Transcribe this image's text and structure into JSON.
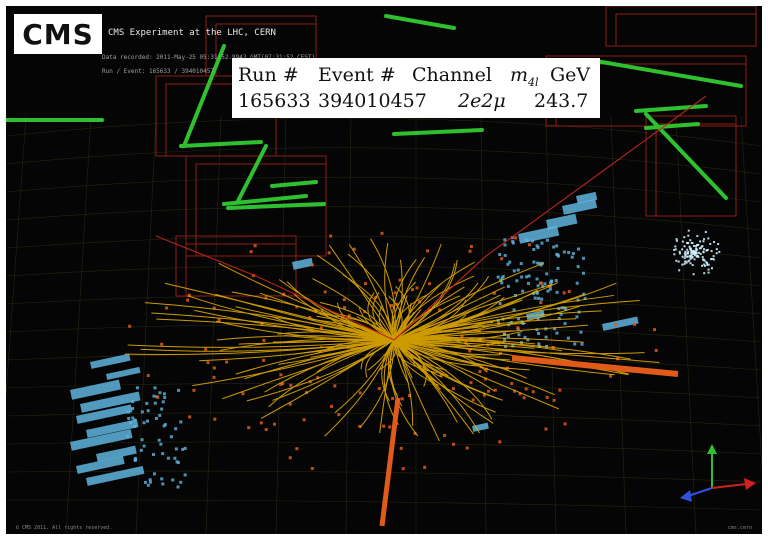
{
  "logo": {
    "text": "CMS"
  },
  "header": {
    "experiment": "CMS Experiment at the LHC, CERN",
    "data_recorded": "Data recorded: 2011-May-25 05:31:52.9943 GMT(07:31:52 CEST)",
    "run_event": "Run / Event: 165633 / 394010457"
  },
  "event_table": {
    "headers": [
      "Run #",
      "Event #",
      "Channel",
      "m_4l GeV"
    ],
    "header_run": "Run #",
    "header_event": "Event #",
    "header_channel": "Channel",
    "header_mass_symbol": "m",
    "header_mass_subscript": "4l",
    "header_mass_unit": "GeV",
    "run": "165633",
    "event": "394010457",
    "channel": "2e2μ",
    "mass": "243.7"
  },
  "footer": {
    "left": "© CMS 2011. All rights reserved.",
    "right": "cms.cern"
  },
  "colors": {
    "background": "#050505",
    "tracks": "#f0b400",
    "muon_chambers": "#c0261f",
    "muon_segments": "#2fbf2f",
    "hcal": "#5fb4de",
    "ecal": "#e05a1a",
    "electron_towers": "#e8541a"
  },
  "icons": [
    "axis-gizmo-icon"
  ]
}
